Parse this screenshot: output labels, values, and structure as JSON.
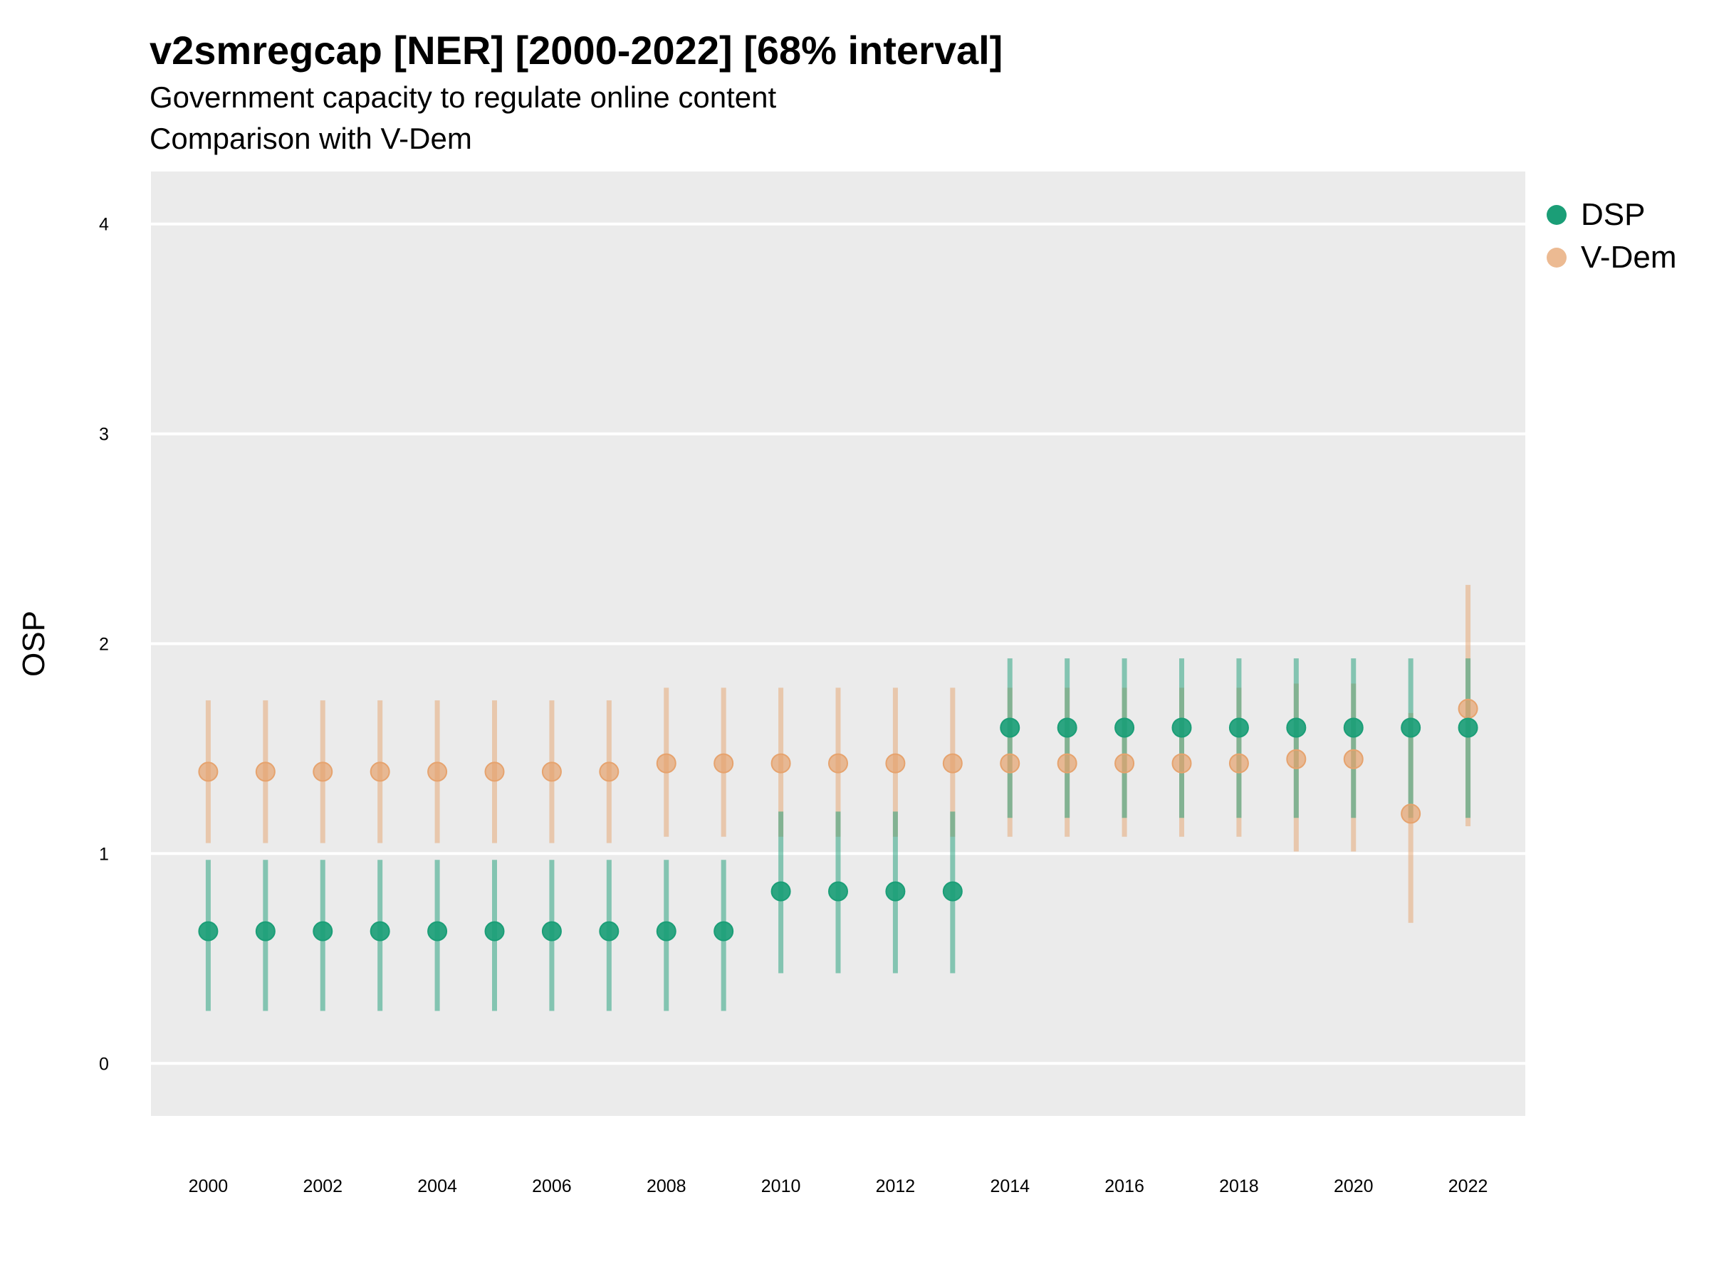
{
  "title": "v2smregcap [NER] [2000-2022] [68% interval]",
  "subtitle_lines": [
    "Government capacity to regulate online content",
    "Comparison with V-Dem"
  ],
  "colors": {
    "panel": "#ebebeb",
    "grid": "#ffffff",
    "DSP": "#1b9e77",
    "V-Dem": "#e6a36e"
  },
  "chart_data": {
    "type": "scatter",
    "title": "v2smregcap [NER] [2000-2022] [68% interval]",
    "subtitle": "Government capacity to regulate online content / Comparison with V-Dem",
    "xlabel": "",
    "ylabel": "OSP",
    "xlim": [
      1999,
      2023
    ],
    "ylim": [
      -0.25,
      4.25
    ],
    "yticks": [
      0,
      1,
      2,
      3,
      4
    ],
    "xticks": [
      2000,
      2002,
      2004,
      2006,
      2008,
      2010,
      2012,
      2014,
      2016,
      2018,
      2020,
      2022
    ],
    "grid": true,
    "legend_position": "right",
    "x": [
      2000,
      2001,
      2002,
      2003,
      2004,
      2005,
      2006,
      2007,
      2008,
      2009,
      2010,
      2011,
      2012,
      2013,
      2014,
      2015,
      2016,
      2017,
      2018,
      2019,
      2020,
      2021,
      2022
    ],
    "series": [
      {
        "name": "DSP",
        "values": [
          0.63,
          0.63,
          0.63,
          0.63,
          0.63,
          0.63,
          0.63,
          0.63,
          0.63,
          0.63,
          0.82,
          0.82,
          0.82,
          0.82,
          1.6,
          1.6,
          1.6,
          1.6,
          1.6,
          1.6,
          1.6,
          1.6,
          1.6
        ],
        "lower": [
          0.25,
          0.25,
          0.25,
          0.25,
          0.25,
          0.25,
          0.25,
          0.25,
          0.25,
          0.25,
          0.43,
          0.43,
          0.43,
          0.43,
          1.17,
          1.17,
          1.17,
          1.17,
          1.17,
          1.17,
          1.17,
          1.17,
          1.17
        ],
        "upper": [
          0.97,
          0.97,
          0.97,
          0.97,
          0.97,
          0.97,
          0.97,
          0.97,
          0.97,
          0.97,
          1.2,
          1.2,
          1.2,
          1.2,
          1.93,
          1.93,
          1.93,
          1.93,
          1.93,
          1.93,
          1.93,
          1.93,
          1.93
        ]
      },
      {
        "name": "V-Dem",
        "values": [
          1.39,
          1.39,
          1.39,
          1.39,
          1.39,
          1.39,
          1.39,
          1.39,
          1.43,
          1.43,
          1.43,
          1.43,
          1.43,
          1.43,
          1.43,
          1.43,
          1.43,
          1.43,
          1.43,
          1.45,
          1.45,
          1.19,
          1.69
        ],
        "lower": [
          1.05,
          1.05,
          1.05,
          1.05,
          1.05,
          1.05,
          1.05,
          1.05,
          1.08,
          1.08,
          1.08,
          1.08,
          1.08,
          1.08,
          1.08,
          1.08,
          1.08,
          1.08,
          1.08,
          1.01,
          1.01,
          0.67,
          1.13
        ],
        "upper": [
          1.73,
          1.73,
          1.73,
          1.73,
          1.73,
          1.73,
          1.73,
          1.73,
          1.79,
          1.79,
          1.79,
          1.79,
          1.79,
          1.79,
          1.79,
          1.79,
          1.79,
          1.79,
          1.79,
          1.81,
          1.81,
          1.67,
          2.28
        ]
      }
    ]
  }
}
